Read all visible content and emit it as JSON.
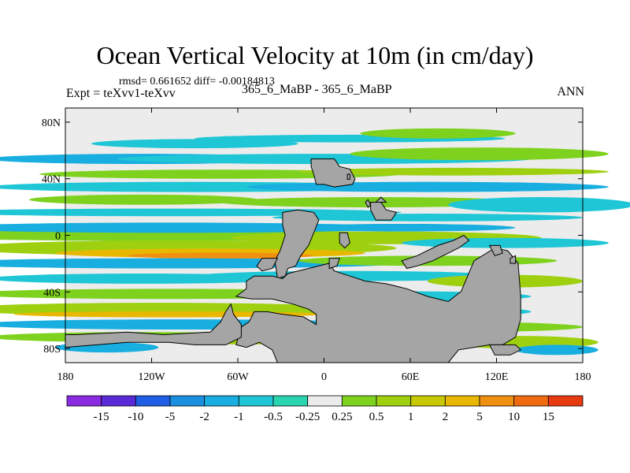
{
  "chart_data": {
    "type": "heatmap",
    "title": "Ocean Vertical Velocity at 10m (in cm/day)",
    "stats": "rmsd= 0.661652 diff= -0.00184813",
    "left_label": "Expt = teXvv1-teXvv",
    "center_label": "365_6_MaBP - 365_6_MaBP",
    "right_label": "ANN",
    "x_ticks": [
      "180",
      "120W",
      "60W",
      "0",
      "60E",
      "120E",
      "180"
    ],
    "x_tick_values": [
      -180,
      -120,
      -60,
      0,
      60,
      120,
      180
    ],
    "y_ticks": [
      "80N",
      "40N",
      "0",
      "40S",
      "80S"
    ],
    "y_tick_values": [
      80,
      40,
      0,
      -40,
      -80
    ],
    "xlim": [
      -180,
      180
    ],
    "ylim": [
      -90,
      90
    ],
    "colorbar": {
      "colors": [
        "#8a2be2",
        "#5a2ad8",
        "#1e5fe6",
        "#1a8fe0",
        "#18aee0",
        "#1ec6d6",
        "#2ad4b0",
        "#ececec",
        "#7ed21e",
        "#9ed010",
        "#c8c800",
        "#e8b800",
        "#f09010",
        "#f06a10",
        "#e83a10"
      ],
      "labels": [
        "-15",
        "-10",
        "-5",
        "-2",
        "-1",
        "-0.5",
        "-0.25",
        "0.25",
        "0.5",
        "1",
        "2",
        "5",
        "10",
        "15"
      ],
      "boundaries": [
        -15,
        -10,
        -5,
        -2,
        -1,
        -0.5,
        -0.25,
        0.25,
        0.5,
        1,
        2,
        5,
        10,
        15
      ]
    },
    "colors": {
      "land": "#a5a5a5",
      "neutral": "#ececec"
    }
  }
}
